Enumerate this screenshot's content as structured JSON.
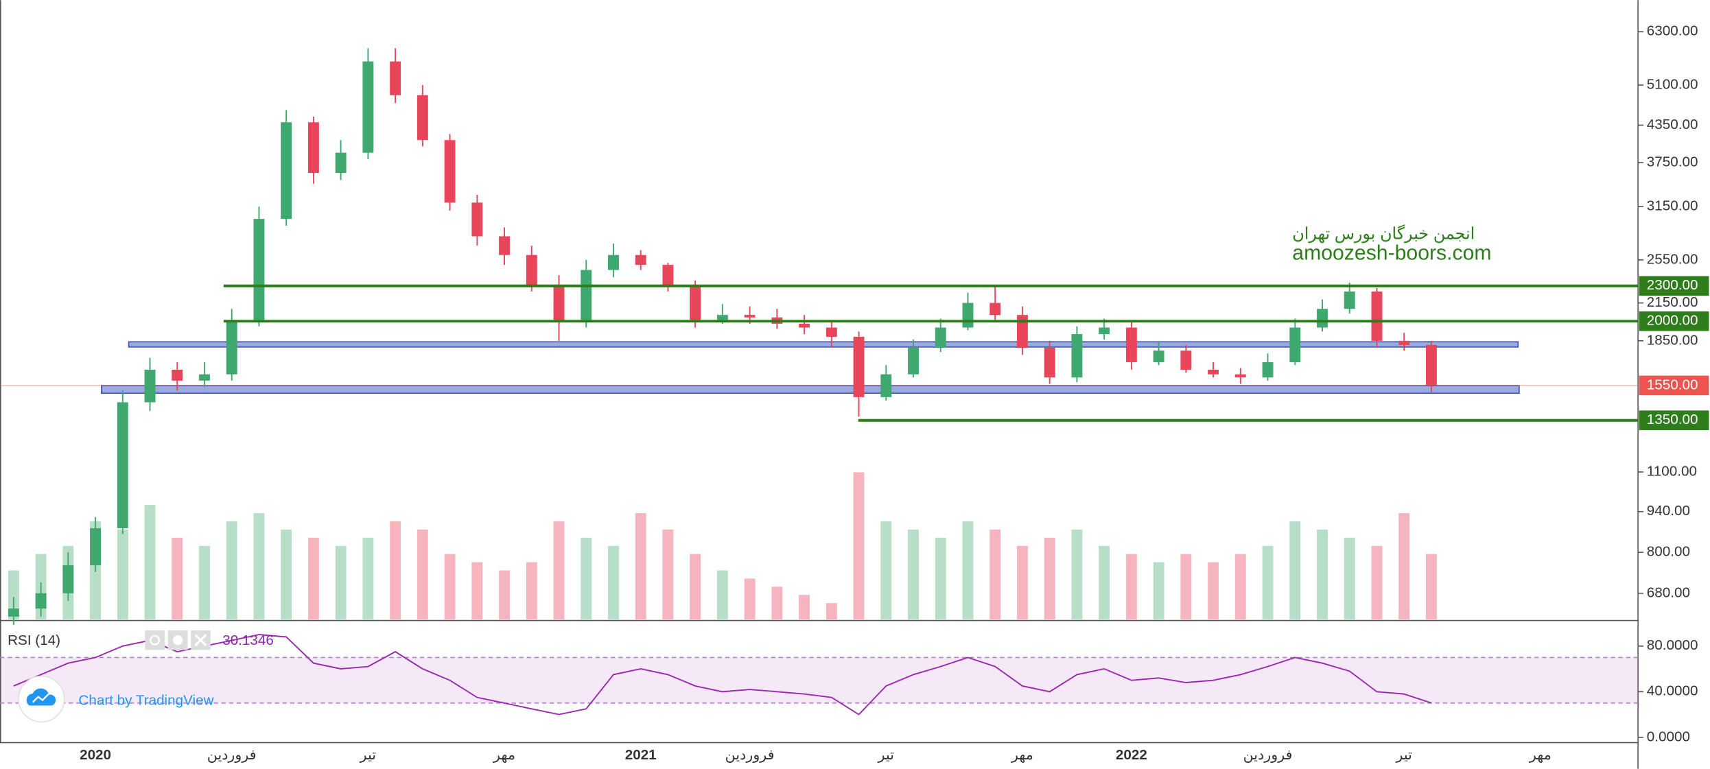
{
  "chart_data": [
    {
      "type": "candlestick",
      "log_scale": true,
      "up_color": "#3fa86e",
      "down_color": "#e8455a",
      "volume_up_color": "#a5d6b8",
      "volume_down_color": "#f4a3ae",
      "ylim": [
        613,
        7140
      ],
      "yticks": [
        {
          "value": 6300,
          "label": "6300.00"
        },
        {
          "value": 5100,
          "label": "5100.00"
        },
        {
          "value": 4350,
          "label": "4350.00"
        },
        {
          "value": 3750,
          "label": "3750.00"
        },
        {
          "value": 3150,
          "label": "3150.00"
        },
        {
          "value": 2550,
          "label": "2550.00"
        },
        {
          "value": 2150,
          "label": "2150.00"
        },
        {
          "value": 1850,
          "label": "1850.00"
        },
        {
          "value": 1100,
          "label": "1100.00"
        },
        {
          "value": 940,
          "label": "940.00"
        },
        {
          "value": 800,
          "label": "800.00"
        },
        {
          "value": 680,
          "label": "680.00"
        }
      ],
      "open": [
        620,
        640,
        680,
        760,
        880,
        1450,
        1650,
        1580,
        1620,
        2000,
        3000,
        4400,
        3600,
        3900,
        5600,
        4900,
        4100,
        3200,
        2800,
        2600,
        2300,
        2000,
        2450,
        2600,
        2500,
        2300,
        2000,
        2050,
        2030,
        1980,
        1950,
        1880,
        1480,
        1620,
        1800,
        1950,
        2150,
        2050,
        1800,
        1600,
        1900,
        1950,
        1700,
        1780,
        1650,
        1620,
        1600,
        1700,
        1950,
        2100,
        2250,
        1850,
        1820,
        null,
        null,
        null,
        null,
        null,
        null,
        null
      ],
      "high": [
        670,
        710,
        800,
        920,
        1520,
        1730,
        1700,
        1700,
        2100,
        3150,
        4620,
        4500,
        4100,
        5900,
        5900,
        5100,
        4200,
        3300,
        2900,
        2700,
        2400,
        2550,
        2720,
        2650,
        2520,
        2350,
        2140,
        2120,
        2100,
        2050,
        2000,
        1920,
        1680,
        1860,
        2020,
        2240,
        2300,
        2120,
        1850,
        1960,
        2020,
        1990,
        1840,
        1820,
        1700,
        1660,
        1760,
        2020,
        2180,
        2330,
        2280,
        1910,
        1850,
        null,
        null,
        null,
        null,
        null,
        null,
        null
      ],
      "low": [
        600,
        620,
        660,
        740,
        860,
        1400,
        1520,
        1540,
        1580,
        1960,
        2920,
        3450,
        3500,
        3800,
        4750,
        4000,
        3100,
        2700,
        2500,
        2250,
        1850,
        1950,
        2380,
        2450,
        2250,
        1950,
        1980,
        1980,
        1940,
        1900,
        1800,
        1370,
        1460,
        1600,
        1770,
        1930,
        2000,
        1750,
        1560,
        1570,
        1860,
        1650,
        1680,
        1630,
        1600,
        1560,
        1580,
        1680,
        1920,
        2060,
        1800,
        1780,
        1510,
        null,
        null,
        null,
        null,
        null,
        null,
        null
      ],
      "close": [
        640,
        680,
        760,
        880,
        1450,
        1650,
        1580,
        1620,
        2000,
        3000,
        4400,
        3600,
        3900,
        5600,
        4900,
        4100,
        3200,
        2800,
        2600,
        2300,
        2000,
        2450,
        2600,
        2500,
        2300,
        2000,
        2050,
        2030,
        1980,
        1950,
        1880,
        1480,
        1620,
        1800,
        1950,
        2150,
        2050,
        1800,
        1600,
        1900,
        1950,
        1700,
        1780,
        1650,
        1620,
        1600,
        1700,
        1950,
        2100,
        2250,
        1850,
        1820,
        1550,
        null,
        null,
        null,
        null,
        null,
        null,
        null
      ],
      "volume": [
        30,
        40,
        45,
        60,
        55,
        70,
        50,
        45,
        60,
        65,
        55,
        50,
        45,
        50,
        60,
        55,
        40,
        35,
        30,
        35,
        60,
        50,
        45,
        65,
        55,
        40,
        30,
        25,
        20,
        15,
        10,
        90,
        60,
        55,
        50,
        60,
        55,
        45,
        50,
        55,
        45,
        40,
        35,
        40,
        35,
        40,
        45,
        60,
        55,
        50,
        45,
        65,
        40,
        null,
        null,
        null,
        null,
        null,
        null,
        null
      ],
      "levels": [
        {
          "value": 2300,
          "label": "2300.00"
        },
        {
          "value": 2000,
          "label": "2000.00"
        },
        {
          "value": 1350,
          "label": "1350.00"
        }
      ],
      "level_color": "#2e7d1b",
      "zones": [
        {
          "low": 1805,
          "high": 1843
        },
        {
          "low": 1503,
          "high": 1549
        }
      ],
      "zone_color": "#7f95d6",
      "last_price": {
        "value": 1550,
        "label": "1550.00"
      },
      "last_price_color": "#ef5350",
      "annotations": [
        "انجمن خبرگان بورس تهران",
        "amoozesh-boors.com"
      ],
      "annotation_color": "#2e7d1b"
    },
    {
      "type": "line",
      "categories": [
        null,
        null,
        null,
        "2020",
        null,
        null,
        null,
        null,
        "فروردین",
        null,
        null,
        null,
        null,
        "تیر",
        null,
        null,
        null,
        null,
        "مهر",
        null,
        null,
        null,
        null,
        "2021",
        null,
        null,
        null,
        "فروردین",
        null,
        null,
        null,
        null,
        "تیر",
        null,
        null,
        null,
        null,
        "مهر",
        null,
        null,
        null,
        "2022",
        null,
        null,
        null,
        null,
        "فروردین",
        null,
        null,
        null,
        null,
        "تیر",
        null,
        null,
        null,
        null,
        "مهر",
        null,
        null,
        null
      ],
      "series": [
        {
          "name": "RSI (14)",
          "color": "#9c27b0",
          "values": [
            45,
            55,
            65,
            70,
            80,
            85,
            75,
            80,
            85,
            90,
            88,
            65,
            60,
            62,
            75,
            60,
            50,
            35,
            30,
            25,
            20,
            25,
            55,
            60,
            55,
            45,
            40,
            42,
            40,
            38,
            35,
            20,
            45,
            55,
            62,
            70,
            62,
            45,
            40,
            55,
            60,
            50,
            52,
            48,
            50,
            55,
            62,
            70,
            65,
            58,
            40,
            38,
            30.1346,
            null,
            null,
            null,
            null,
            null,
            null,
            null
          ]
        }
      ],
      "ylim": [
        -3.7,
        101.4
      ],
      "yticks": [
        {
          "value": 80,
          "label": "80.0000"
        },
        {
          "value": 40,
          "label": "40.0000"
        },
        {
          "value": 0,
          "label": "0.0000"
        }
      ],
      "band": [
        30,
        70
      ],
      "band_color": "#9c27b0"
    }
  ],
  "watermark": "Chart by TradingView"
}
